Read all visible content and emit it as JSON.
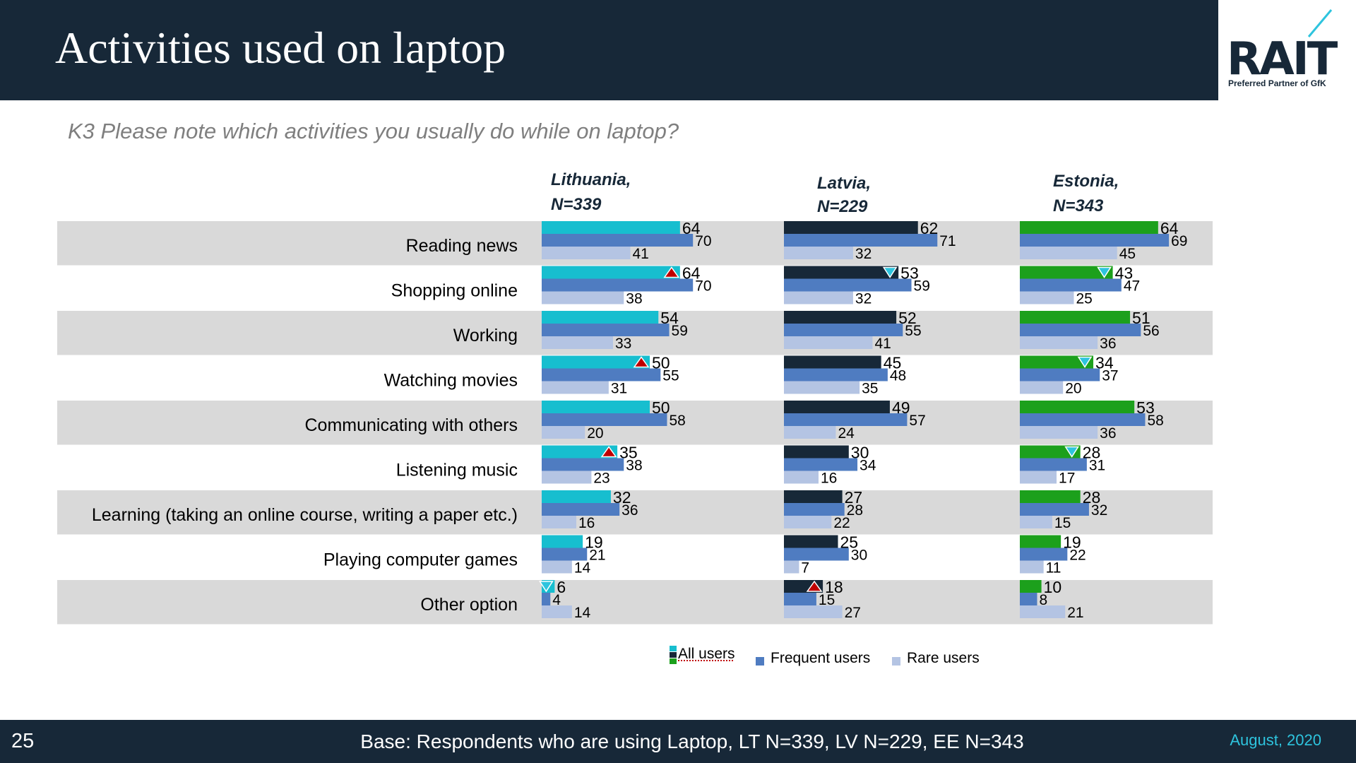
{
  "title": "Activities used on laptop",
  "logo": {
    "text": "RAIT",
    "tagline": "Preferred Partner of GfK"
  },
  "question": "K3 Please note which activities you usually do while on laptop?",
  "colors": {
    "header_bg": "#172838",
    "row_band": "#d9d9d9",
    "frequent": "#4f7cc1",
    "rare": "#b4c4e3",
    "marker_up": "#c00000",
    "marker_down": "#2ec4de",
    "date": "#2ec4de"
  },
  "legend": {
    "all": "All users",
    "frequent": "Frequent users",
    "rare": "Rare users"
  },
  "footer": {
    "page_number": "25",
    "base": "Base: Respondents who are using Laptop, LT N=339, LV N=229, EE N=343",
    "date": "August, 2020"
  },
  "chart_data": {
    "type": "bar",
    "orientation": "horizontal",
    "categories": [
      "Reading news",
      "Shopping online",
      "Working",
      "Watching movies",
      "Communicating with others",
      "Listening  music",
      "Learning (taking an online course, writing a paper etc.)",
      "Playing computer games",
      "Other option"
    ],
    "xlim": [
      0,
      100
    ],
    "panels": [
      {
        "title": "Lithuania,",
        "n": "N=339",
        "all_color": "#17becf",
        "series": [
          {
            "name": "All users",
            "values": [
              64,
              64,
              54,
              50,
              50,
              35,
              32,
              19,
              6
            ]
          },
          {
            "name": "Frequent users",
            "values": [
              70,
              70,
              59,
              55,
              58,
              38,
              36,
              21,
              4
            ]
          },
          {
            "name": "Rare users",
            "values": [
              41,
              38,
              33,
              31,
              20,
              23,
              16,
              14,
              14
            ]
          }
        ],
        "markers": [
          "",
          "up",
          "",
          "up",
          "",
          "up",
          "",
          "",
          "down"
        ]
      },
      {
        "title": "Latvia,",
        "n": "N=229",
        "all_color": "#172838",
        "series": [
          {
            "name": "All users",
            "values": [
              62,
              53,
              52,
              45,
              49,
              30,
              27,
              25,
              18
            ]
          },
          {
            "name": "Frequent users",
            "values": [
              71,
              59,
              55,
              48,
              57,
              34,
              28,
              30,
              15
            ]
          },
          {
            "name": "Rare users",
            "values": [
              32,
              32,
              41,
              35,
              24,
              16,
              22,
              7,
              27
            ]
          }
        ],
        "markers": [
          "",
          "down",
          "",
          "",
          "",
          "",
          "",
          "",
          "up"
        ]
      },
      {
        "title": "Estonia,",
        "n": "N=343",
        "all_color": "#1ca01c",
        "series": [
          {
            "name": "All users",
            "values": [
              64,
              43,
              51,
              34,
              53,
              28,
              28,
              19,
              10
            ]
          },
          {
            "name": "Frequent users",
            "values": [
              69,
              47,
              56,
              37,
              58,
              31,
              32,
              22,
              8
            ]
          },
          {
            "name": "Rare users",
            "values": [
              45,
              25,
              36,
              20,
              36,
              17,
              15,
              11,
              21
            ]
          }
        ],
        "markers": [
          "",
          "down",
          "",
          "down",
          "",
          "down",
          "",
          "",
          ""
        ]
      }
    ]
  }
}
